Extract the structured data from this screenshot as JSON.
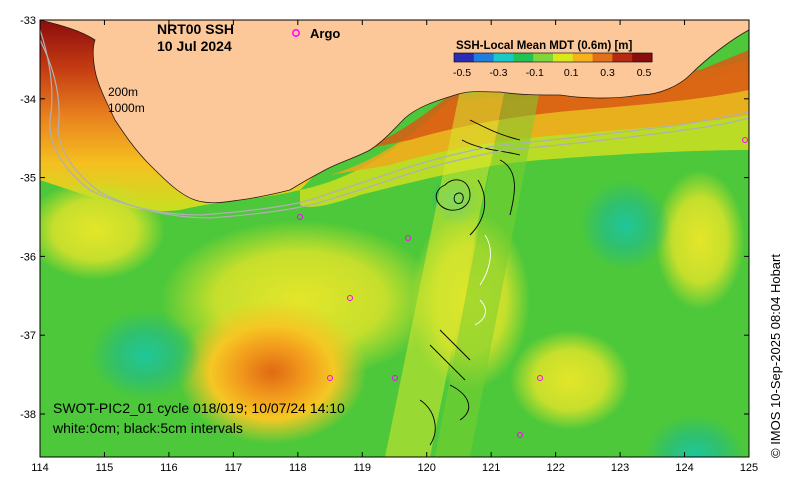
{
  "title": {
    "line1": "NRT00 SSH",
    "line2": "10 Jul 2024"
  },
  "legend_argo": {
    "label": "Argo",
    "color": "#ff00ff"
  },
  "isobaths": {
    "line1": "200m",
    "line2": "1000m"
  },
  "colorbar": {
    "title": "SSH-Local Mean MDT (0.6m) [m]",
    "ticks": [
      "-0.5",
      "-0.3",
      "-0.1",
      "0.1",
      "0.3",
      "0.5"
    ],
    "colors": [
      "#2b2bb8",
      "#1f7fe0",
      "#19c8c8",
      "#22c355",
      "#7fd63a",
      "#d8e81a",
      "#f5b21a",
      "#e0701a",
      "#b52a10",
      "#8a0d0d"
    ]
  },
  "caption": {
    "line1": "SWOT-PIC2_01 cycle 018/019; 10/07/24 14:10",
    "line2": "white:0cm; black:5cm intervals"
  },
  "credit": "© IMOS 10-Sep-2025 08:04 Hobart",
  "x_axis": {
    "ticks": [
      "114",
      "115",
      "116",
      "117",
      "118",
      "119",
      "120",
      "121",
      "122",
      "123",
      "124",
      "125"
    ]
  },
  "y_axis": {
    "ticks": [
      "-33",
      "-34",
      "-35",
      "-36",
      "-37",
      "-38"
    ]
  },
  "colors": {
    "land": "#fcc89a",
    "coast": "#2b1a10",
    "isobath": "#b0b0b0",
    "argo": "#ff00ff"
  }
}
